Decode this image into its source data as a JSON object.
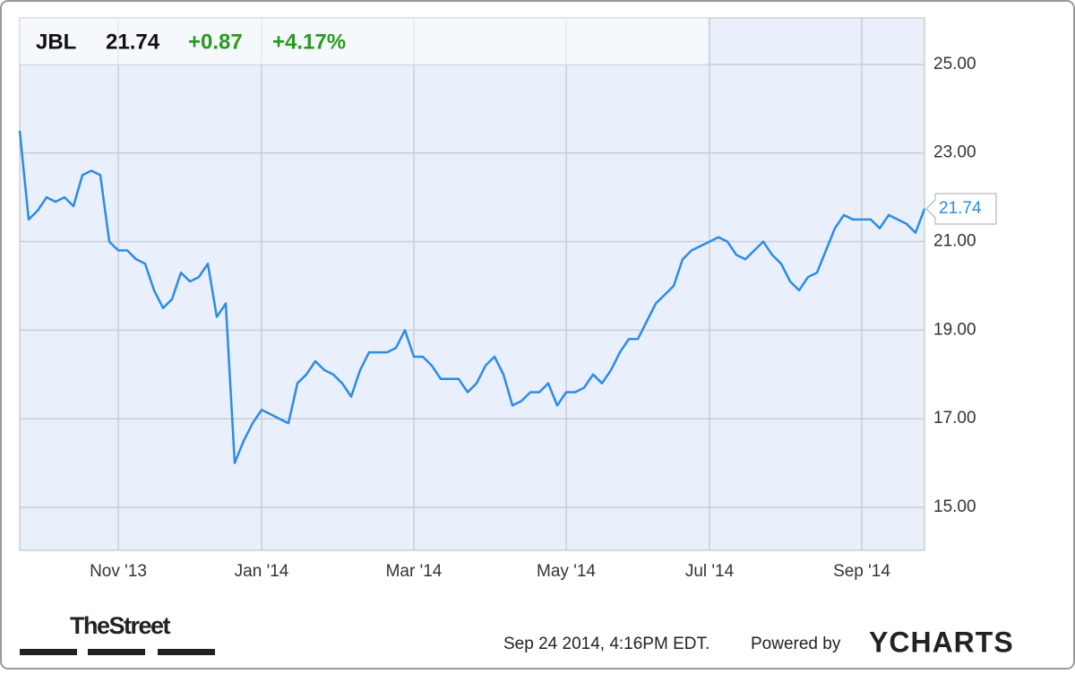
{
  "chart_data": {
    "type": "line",
    "ticker": "JBL",
    "price": 21.74,
    "change": "+0.87",
    "change_pct": "+4.17%",
    "categories": [
      null,
      null,
      null,
      null,
      null,
      null,
      null,
      null,
      null,
      null,
      null,
      "Nov '13",
      null,
      null,
      null,
      null,
      null,
      null,
      null,
      null,
      null,
      null,
      null,
      null,
      null,
      null,
      null,
      "Jan '14",
      null,
      null,
      null,
      null,
      null,
      null,
      null,
      null,
      null,
      null,
      null,
      null,
      null,
      null,
      null,
      null,
      "Mar '14",
      null,
      null,
      null,
      null,
      null,
      null,
      null,
      null,
      null,
      null,
      null,
      null,
      null,
      null,
      null,
      null,
      "May '14",
      null,
      null,
      null,
      null,
      null,
      null,
      null,
      null,
      null,
      null,
      null,
      null,
      null,
      null,
      null,
      "Jul '14",
      null,
      null,
      null,
      null,
      null,
      null,
      null,
      null,
      null,
      null,
      null,
      null,
      null,
      null,
      null,
      null,
      "Sep '14",
      null,
      null,
      null,
      null,
      null,
      null,
      null
    ],
    "series": [
      {
        "name": "JBL",
        "color": "#2b8ce6",
        "values": [
          23.5,
          21.5,
          21.7,
          22.0,
          21.9,
          22.0,
          21.8,
          22.5,
          22.6,
          22.5,
          21.0,
          20.8,
          20.8,
          20.6,
          20.5,
          19.9,
          19.5,
          19.7,
          20.3,
          20.1,
          20.2,
          20.5,
          19.3,
          19.6,
          16.0,
          16.5,
          16.9,
          17.2,
          17.1,
          17.0,
          16.9,
          17.8,
          18.0,
          18.3,
          18.1,
          18.0,
          17.8,
          17.5,
          18.1,
          18.5,
          18.5,
          18.5,
          18.6,
          19.0,
          18.4,
          18.4,
          18.2,
          17.9,
          17.9,
          17.9,
          17.6,
          17.8,
          18.2,
          18.4,
          18.0,
          17.3,
          17.4,
          17.6,
          17.6,
          17.8,
          17.3,
          17.6,
          17.6,
          17.7,
          18.0,
          17.8,
          18.1,
          18.5,
          18.8,
          18.8,
          19.2,
          19.6,
          19.8,
          20.0,
          20.6,
          20.8,
          20.9,
          21.0,
          21.1,
          21.0,
          20.7,
          20.6,
          20.8,
          21.0,
          20.7,
          20.5,
          20.1,
          19.9,
          20.2,
          20.3,
          20.8,
          21.3,
          21.6,
          21.5,
          21.5,
          21.5,
          21.3,
          21.6,
          21.5,
          21.4,
          21.2,
          21.74
        ]
      }
    ],
    "ylim": [
      14.03,
      26.05
    ],
    "yticks": [
      {
        "value": 15,
        "label": "15.00"
      },
      {
        "value": 17,
        "label": "17.00"
      },
      {
        "value": 19,
        "label": "19.00"
      },
      {
        "value": 21,
        "label": "21.00"
      },
      {
        "value": 23,
        "label": "23.00"
      },
      {
        "value": 25,
        "label": "25.00"
      }
    ],
    "grid": true,
    "source": "TheStreet",
    "timestamp": "Sep 24 2014, 4:16PM EDT.",
    "powered_by": "Powered by",
    "brand": "YCHARTS"
  }
}
